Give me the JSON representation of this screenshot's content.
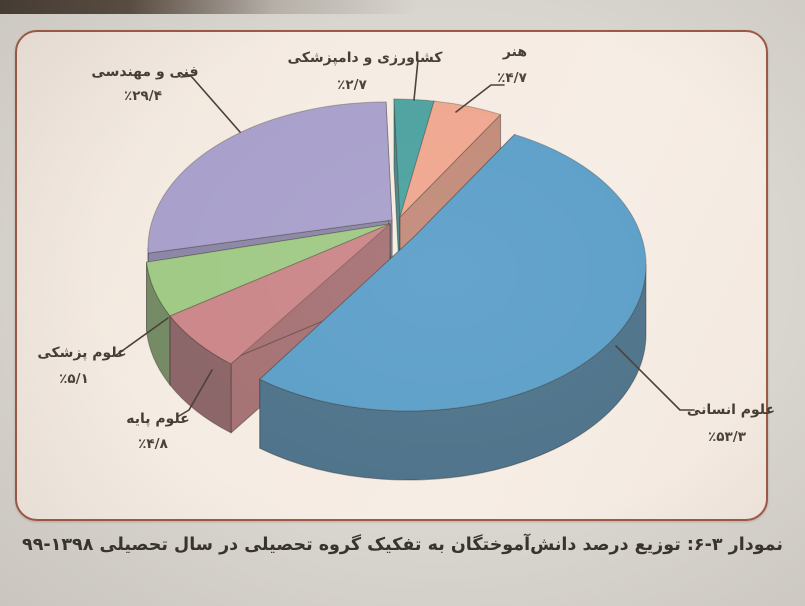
{
  "figure": {
    "caption": "نمودار ۳-۶: توزیع درصد دانش‌آموختگان به تفکیک گروه تحصیلی در سال تحصیلی ۱۳۹۸-۹۹"
  },
  "chart_data": {
    "type": "pie",
    "style": "3d-exploded",
    "title": "توزیع درصد دانش‌آموختگان به تفکیک گروه تحصیلی در سال تحصیلی ۱۳۹۸-۹۹",
    "unit": "percent",
    "legend_position": "none",
    "slices": [
      {
        "id": "agriculture",
        "label": "کشاورزی و دامپزشکی",
        "value": 2.7,
        "value_label": "٪۲/۷",
        "color": "#4da2a0"
      },
      {
        "id": "art",
        "label": "هنر",
        "value": 4.7,
        "value_label": "٪۴/۷",
        "color": "#f0a78f"
      },
      {
        "id": "humanities",
        "label": "علوم انسانی",
        "value": 53.3,
        "value_label": "٪۵۳/۳",
        "color": "#5c9fc9"
      },
      {
        "id": "basic-sciences",
        "label": "علوم پایه",
        "value": 4.8,
        "value_label": "٪۴/۸",
        "color": "#cb8689"
      },
      {
        "id": "medical-sciences",
        "label": "علوم پزشکی",
        "value": 5.1,
        "value_label": "٪۵/۱",
        "color": "#a0c985"
      },
      {
        "id": "engineering",
        "label": "فنی و مهندسی",
        "value": 29.4,
        "value_label": "٪۲۹/۴",
        "color": "#a8a0cb"
      }
    ]
  },
  "colors": {
    "frame_border": "#9c5a47",
    "panel_bg": "#f5ece3",
    "page_bg": "#d9d5cf",
    "text": "#453e35",
    "leader_line": "#4a4036"
  }
}
